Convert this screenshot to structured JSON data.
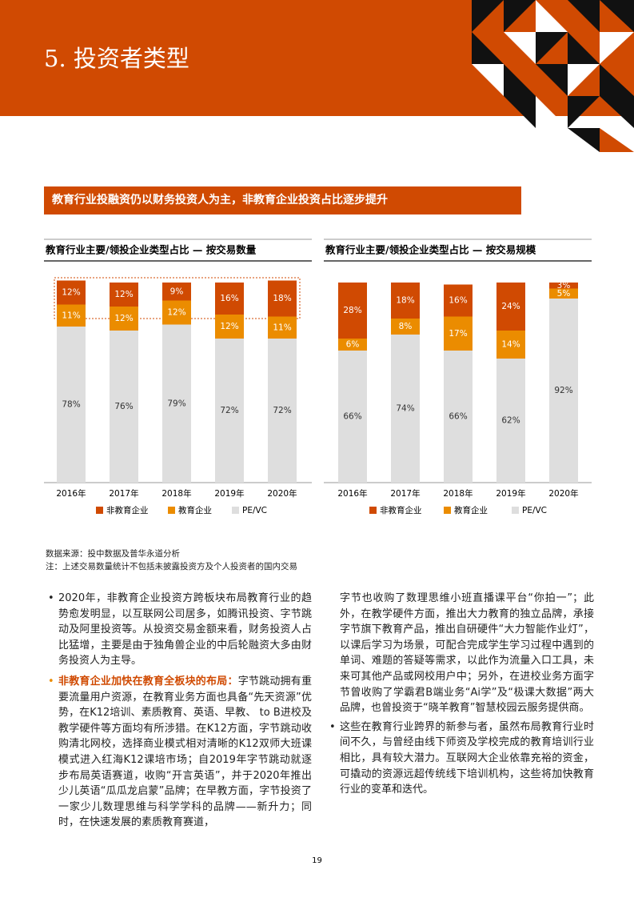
{
  "header": {
    "title": "5. 投资者类型"
  },
  "banner": "教育行业投融资仍以财务投资人为主，非教育企业投资占比逐步提升",
  "chart_data": [
    {
      "type": "bar",
      "stacked": true,
      "title": "教育行业主要/领投企业类型占比 — 按交易数量",
      "categories": [
        "2016年",
        "2017年",
        "2018年",
        "2019年",
        "2020年"
      ],
      "series": [
        {
          "name": "非教育企业",
          "color": "#d04a02",
          "values": [
            12,
            12,
            9,
            16,
            18
          ],
          "value_labels": [
            "12%",
            "12%",
            "9%",
            "16%",
            "18%"
          ]
        },
        {
          "name": "教育企业",
          "color": "#eb8c00",
          "values": [
            11,
            12,
            12,
            12,
            11
          ],
          "value_labels": [
            "11%",
            "12%",
            "12%",
            "12%",
            "11%"
          ]
        },
        {
          "name": "PE/VC",
          "color": "#dedede",
          "values": [
            78,
            76,
            79,
            72,
            72
          ],
          "value_labels": [
            "78%",
            "76%",
            "79%",
            "72%",
            "72%"
          ]
        }
      ]
    },
    {
      "type": "bar",
      "stacked": true,
      "title": "教育行业主要/领投企业类型占比 — 按交易规模",
      "categories": [
        "2016年",
        "2017年",
        "2018年",
        "2019年",
        "2020年"
      ],
      "series": [
        {
          "name": "非教育企业",
          "color": "#d04a02",
          "values": [
            28,
            18,
            16,
            24,
            3
          ],
          "value_labels": [
            "28%",
            "18%",
            "16%",
            "24%",
            "3%"
          ]
        },
        {
          "name": "教育企业",
          "color": "#eb8c00",
          "values": [
            6,
            8,
            17,
            14,
            5
          ],
          "value_labels": [
            "6%",
            "8%",
            "17%",
            "14%",
            "5%"
          ]
        },
        {
          "name": "PE/VC",
          "color": "#dedede",
          "values": [
            66,
            74,
            66,
            62,
            92
          ],
          "value_labels": [
            "66%",
            "74%",
            "66%",
            "62%",
            "92%"
          ]
        }
      ]
    }
  ],
  "notes": [
    "数据来源：投中数据及普华永道分析",
    "注：上述交易数量统计不包括未披露投资方及个人投资者的国内交易"
  ],
  "body": {
    "left": [
      {
        "text": "2020年，非教育企业投资方跨板块布局教育行业的趋势愈发明显，以互联网公司居多，如腾讯投资、字节跳动及阿里投资等。从投资交易金额来看，财务投资人占比猛增，主要是由于独角兽企业的中后轮融资大多由财务投资人为主导。"
      },
      {
        "lead": "非教育企业加快在教育全板块的布局：",
        "text": "字节跳动拥有重要流量用户资源，在教育业务方面也具备“先天资源”优势，在K12培训、素质教育、英语、早教、 to B进校及教学硬件等方面均有所涉猎。在K12方面，字节跳动收购清北网校，选择商业模式相对清晰的K12双师大班课模式进入红海K12课培市场；自2019年字节跳动就逐步布局英语赛道，收购“开言英语”，并于2020年推出少儿英语“瓜瓜龙启蒙”品牌；在早教方面，字节投资了一家少儿数理思维与科学学科的品牌——新升力；同时，在快速发展的素质教育赛道，"
      }
    ],
    "right": [
      {
        "text": "字节也收购了数理思维小班直播课平台“你拍一”；此外，在教学硬件方面，推出大力教育的独立品牌，承接字节旗下教育产品，推出自研硬件“大力智能作业灯”，以课后学习为场景，可配合完成学生学习过程中遇到的单词、难题的答疑等需求，以此作为流量入口工具，未来可其他产品或网校用户中；另外，在进校业务方面字节曾收购了学霸君B端业务“Ai学”及“极课大数据”两大品牌，也曾投资于“晓羊教育”智慧校园云服务提供商。"
      },
      {
        "text": "这些在教育行业跨界的新参与者，虽然布局教育行业时间不久，与曾经由线下师资及学校完成的教育培训行业相比，具有较大潜力。互联网大企业依靠充裕的资金，可撬动的资源远超传统线下培训机构，这些将加快教育行业的变革和迭代。"
      }
    ]
  },
  "page_number": "19"
}
